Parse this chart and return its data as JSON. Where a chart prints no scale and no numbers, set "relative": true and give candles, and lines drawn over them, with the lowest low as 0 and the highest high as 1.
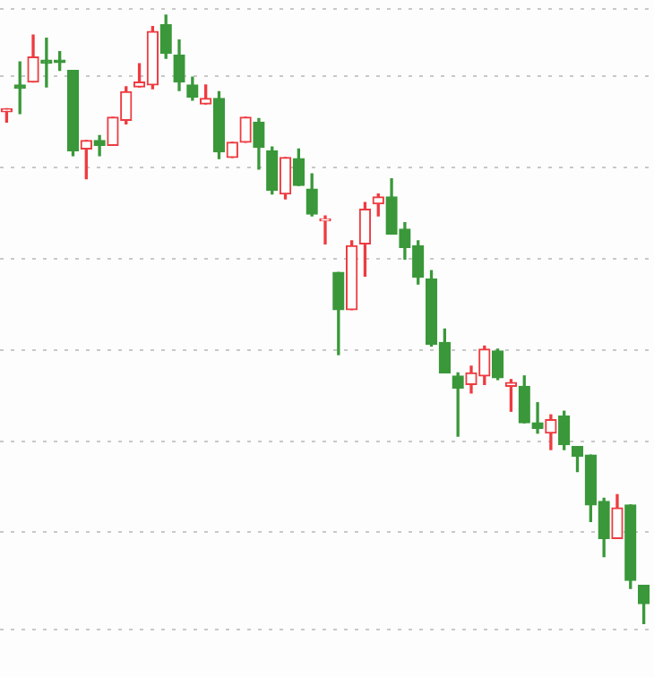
{
  "chart_data": {
    "type": "candlestick",
    "relative": true,
    "grid": "y",
    "categories": [
      null,
      null,
      null,
      null,
      null,
      null,
      null,
      null,
      null,
      null,
      null,
      null,
      null,
      null,
      null,
      null,
      null,
      null,
      null,
      null,
      null,
      null,
      null,
      null,
      null,
      null,
      null,
      null,
      null,
      null,
      null,
      null,
      null,
      null,
      null,
      null,
      null,
      null,
      null,
      null,
      null,
      null,
      null,
      null,
      null,
      null,
      null,
      null,
      null
    ],
    "ohlc": [
      [
        0.841,
        0.846,
        0.824,
        0.846
      ],
      [
        0.885,
        0.923,
        0.838,
        0.88
      ],
      [
        0.89,
        0.967,
        0.89,
        0.931
      ],
      [
        0.926,
        0.962,
        0.882,
        0.921
      ],
      [
        0.926,
        0.94,
        0.909,
        0.922
      ],
      [
        0.909,
        0.909,
        0.769,
        0.777
      ],
      [
        0.78,
        0.794,
        0.731,
        0.794
      ],
      [
        0.794,
        0.802,
        0.769,
        0.786
      ],
      [
        0.786,
        0.832,
        0.786,
        0.832
      ],
      [
        0.827,
        0.882,
        0.821,
        0.874
      ],
      [
        0.882,
        0.92,
        0.882,
        0.89
      ],
      [
        0.885,
        0.981,
        0.879,
        0.973
      ],
      [
        0.984,
        1,
        0.929,
        0.937
      ],
      [
        0.934,
        0.959,
        0.876,
        0.89
      ],
      [
        0.885,
        0.898,
        0.86,
        0.865
      ],
      [
        0.854,
        0.885,
        0.854,
        0.863
      ],
      [
        0.863,
        0.874,
        0.764,
        0.775
      ],
      [
        0.766,
        0.791,
        0.766,
        0.791
      ],
      [
        0.791,
        0.832,
        0.791,
        0.832
      ],
      [
        0.824,
        0.83,
        0.747,
        0.783
      ],
      [
        0.777,
        0.783,
        0.706,
        0.712
      ],
      [
        0.706,
        0.766,
        0.698,
        0.766
      ],
      [
        0.764,
        0.78,
        0.72,
        0.72
      ],
      [
        0.714,
        0.739,
        0.67,
        0.673
      ],
      [
        0.662,
        0.67,
        0.624,
        0.665
      ],
      [
        0.577,
        0.577,
        0.442,
        0.516
      ],
      [
        0.516,
        0.629,
        0.516,
        0.621
      ],
      [
        0.624,
        0.692,
        0.571,
        0.681
      ],
      [
        0.69,
        0.706,
        0.67,
        0.701
      ],
      [
        0.701,
        0.731,
        0.64,
        0.64
      ],
      [
        0.648,
        0.659,
        0.599,
        0.618
      ],
      [
        0.621,
        0.629,
        0.558,
        0.569
      ],
      [
        0.566,
        0.58,
        0.456,
        0.459
      ],
      [
        0.462,
        0.484,
        0.412,
        0.412
      ],
      [
        0.407,
        0.412,
        0.308,
        0.387
      ],
      [
        0.393,
        0.423,
        0.379,
        0.412
      ],
      [
        0.407,
        0.456,
        0.393,
        0.451
      ],
      [
        0.448,
        0.451,
        0.401,
        0.404
      ],
      [
        0.39,
        0.401,
        0.349,
        0.396
      ],
      [
        0.39,
        0.407,
        0.33,
        0.33
      ],
      [
        0.33,
        0.363,
        0.313,
        0.321
      ],
      [
        0.313,
        0.343,
        0.286,
        0.335
      ],
      [
        0.341,
        0.349,
        0.286,
        0.294
      ],
      [
        0.291,
        0.291,
        0.25,
        0.275
      ],
      [
        0.277,
        0.277,
        0.168,
        0.195
      ],
      [
        0.201,
        0.206,
        0.11,
        0.14
      ],
      [
        0.14,
        0.212,
        0.14,
        0.19
      ],
      [
        0.195,
        0.195,
        0.058,
        0.071
      ],
      [
        0.063,
        0.063,
        0,
        0.033
      ]
    ],
    "colors": [
      "#ee3b40",
      "#3a983a",
      "#ee3b40",
      "#3a983a",
      "#3a983a",
      "#3a983a",
      "#ee3b40",
      "#3a983a",
      "#ee3b40",
      "#ee3b40",
      "#ee3b40",
      "#ee3b40",
      "#3a983a",
      "#3a983a",
      "#3a983a",
      "#ee3b40",
      "#3a983a",
      "#ee3b40",
      "#ee3b40",
      "#3a983a",
      "#3a983a",
      "#ee3b40",
      "#3a983a",
      "#3a983a",
      "#ee3b40",
      "#3a983a",
      "#ee3b40",
      "#ee3b40",
      "#ee3b40",
      "#3a983a",
      "#3a983a",
      "#3a983a",
      "#3a983a",
      "#3a983a",
      "#3a983a",
      "#ee3b40",
      "#ee3b40",
      "#3a983a",
      "#ee3b40",
      "#3a983a",
      "#3a983a",
      "#ee3b40",
      "#3a983a",
      "#3a983a",
      "#3a983a",
      "#3a983a",
      "#ee3b40",
      "#3a983a",
      "#3a983a"
    ]
  }
}
